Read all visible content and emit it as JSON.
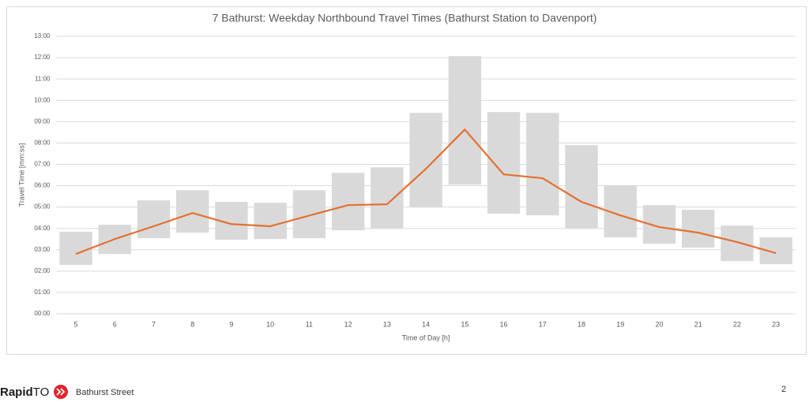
{
  "chart_data": {
    "type": "bar",
    "title": "7 Bathurst: Weekday Northbound Travel Times (Bathurst Station to Davenport)",
    "x_label": "Time of Day [h]",
    "y_label": "Travel Time [mm:ss]",
    "categories": [
      "5",
      "6",
      "7",
      "8",
      "9",
      "10",
      "11",
      "12",
      "13",
      "14",
      "15",
      "16",
      "17",
      "18",
      "19",
      "20",
      "21",
      "22",
      "23"
    ],
    "bars": {
      "color": "#d9d9d9",
      "low": [
        2.29,
        2.8,
        3.54,
        3.8,
        3.47,
        3.5,
        3.54,
        3.91,
        3.99,
        4.98,
        6.05,
        4.69,
        4.61,
        3.99,
        3.58,
        3.28,
        3.1,
        2.47,
        2.32
      ],
      "high": [
        3.84,
        4.17,
        5.31,
        5.79,
        5.24,
        5.2,
        5.79,
        6.6,
        6.86,
        9.41,
        12.07,
        9.45,
        9.41,
        7.9,
        5.98,
        5.09,
        4.87,
        4.13,
        3.58
      ]
    },
    "line": {
      "color": "#e5702f",
      "values": [
        2.8,
        3.5,
        4.1,
        4.72,
        4.2,
        4.1,
        4.6,
        5.09,
        5.13,
        6.79,
        8.63,
        6.53,
        6.35,
        5.24,
        4.61,
        4.06,
        3.8,
        3.36,
        2.84
      ]
    },
    "ylim": [
      0,
      13
    ],
    "yticks": [
      {
        "value": 0,
        "label": "00:00"
      },
      {
        "value": 1,
        "label": "01:00"
      },
      {
        "value": 2,
        "label": "02:00"
      },
      {
        "value": 3,
        "label": "03:00"
      },
      {
        "value": 4,
        "label": "04:00"
      },
      {
        "value": 5,
        "label": "05:00"
      },
      {
        "value": 6,
        "label": "06:00"
      },
      {
        "value": 7,
        "label": "07:00"
      },
      {
        "value": 8,
        "label": "08:00"
      },
      {
        "value": 9,
        "label": "09:00"
      },
      {
        "value": 10,
        "label": "10:00"
      },
      {
        "value": 11,
        "label": "11:00"
      },
      {
        "value": 12,
        "label": "12:00"
      },
      {
        "value": 13,
        "label": "13:00"
      }
    ],
    "grid": true
  },
  "footer": {
    "logo_bold": "Rapid",
    "logo_light": "TO",
    "subtitle": "Bathurst Street",
    "page": "2"
  }
}
